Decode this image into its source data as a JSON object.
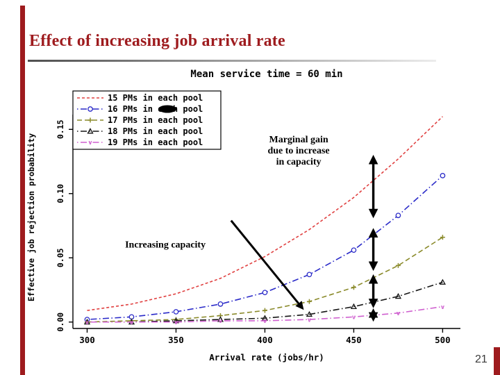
{
  "slide": {
    "title": "Effect of increasing job arrival rate",
    "page_number": "21",
    "accent_color": "#9e1b1e"
  },
  "chart_data": {
    "type": "line",
    "title": "Mean service time = 60 min",
    "xlabel": "Arrival rate (jobs/hr)",
    "ylabel": "Effective job rejection probability",
    "xlim": [
      292,
      510
    ],
    "ylim": [
      -0.005,
      0.168
    ],
    "xticks": [
      300,
      350,
      400,
      450,
      500
    ],
    "yticks": [
      0,
      0.05,
      0.1,
      0.15
    ],
    "grid": false,
    "legend_position": "top-left",
    "x": [
      300,
      325,
      350,
      375,
      400,
      425,
      450,
      475,
      500
    ],
    "series": [
      {
        "name": "15 PMs in each pool",
        "color": "#e04040",
        "linestyle": "shortdash",
        "marker": "none",
        "values": [
          0.009,
          0.014,
          0.022,
          0.034,
          0.051,
          0.072,
          0.097,
          0.127,
          0.16
        ]
      },
      {
        "name": "16 PMs in each pool",
        "color": "#2929c8",
        "linestyle": "dashdot",
        "marker": "circle",
        "values": [
          0.002,
          0.004,
          0.008,
          0.014,
          0.023,
          0.037,
          0.056,
          0.083,
          0.114
        ]
      },
      {
        "name": "17 PMs in each pool",
        "color": "#8a8a2a",
        "linestyle": "dashed",
        "marker": "plus",
        "values": [
          0.0,
          0.001,
          0.002,
          0.005,
          0.009,
          0.016,
          0.027,
          0.044,
          0.066
        ]
      },
      {
        "name": "18 PMs in each pool",
        "color": "#151515",
        "linestyle": "dashdot",
        "marker": "triangle",
        "values": [
          0.0,
          0.0,
          0.001,
          0.002,
          0.003,
          0.006,
          0.012,
          0.02,
          0.031
        ]
      },
      {
        "name": "19 PMs in each pool",
        "color": "#cf5fcf",
        "linestyle": "dashdot",
        "marker": "v",
        "values": [
          0.0,
          0.0,
          0.0,
          0.001,
          0.001,
          0.002,
          0.004,
          0.007,
          0.012
        ]
      }
    ],
    "annotations": {
      "increasing_capacity": {
        "label": "Increasing capacity",
        "label_x": 344,
        "label_y": 0.058,
        "arrow": {
          "x1": 381,
          "y1": 0.079,
          "x2": 421,
          "y2": 0.011
        }
      },
      "marginal_gain": {
        "label_lines": [
          "Marginal gain",
          "due to increase",
          "in capacity"
        ],
        "label_x": 419,
        "label_y": 0.14,
        "arrows_x": 461,
        "arrows": [
          [
            0.128,
            0.083
          ],
          [
            0.071,
            0.042
          ],
          [
            0.035,
            0.013
          ],
          [
            0.0085,
            0.0025
          ]
        ]
      }
    }
  }
}
